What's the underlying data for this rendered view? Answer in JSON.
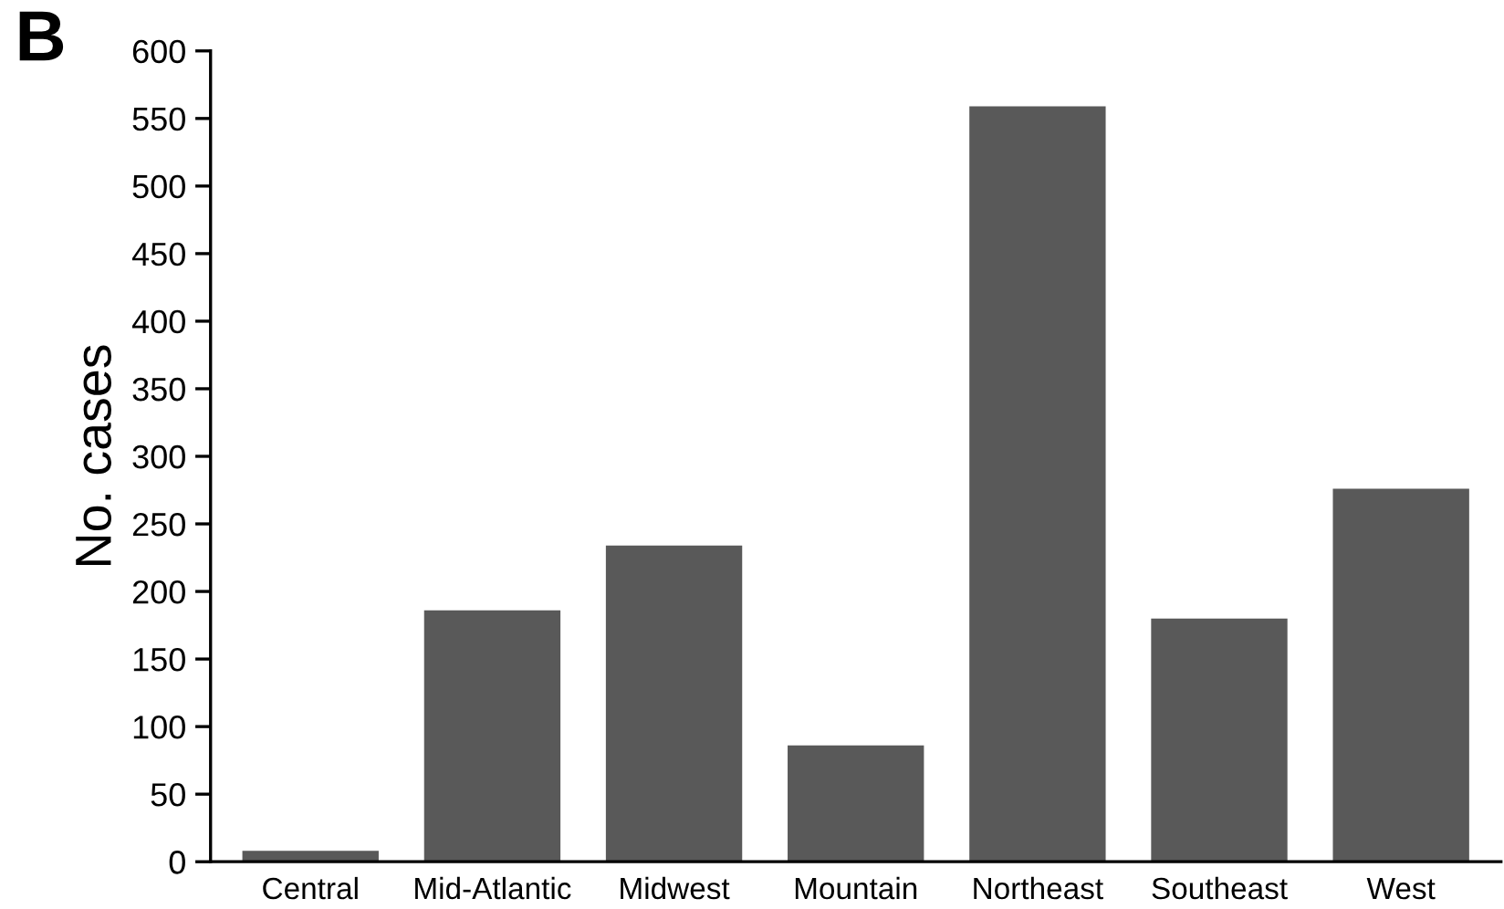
{
  "chart_data": {
    "type": "bar",
    "annotations": [
      "B"
    ],
    "ylabel": "No. cases",
    "categories": [
      "Central",
      "Mid-Atlantic",
      "Midwest",
      "Mountain",
      "Northeast",
      "Southeast",
      "West"
    ],
    "values": [
      8,
      186,
      234,
      86,
      559,
      180,
      276
    ],
    "color": "#595959",
    "ylim": [
      0,
      600
    ],
    "yticks": [
      0,
      50,
      100,
      150,
      200,
      250,
      300,
      350,
      400,
      450,
      500,
      550,
      600
    ],
    "grid": false,
    "legend": false
  }
}
